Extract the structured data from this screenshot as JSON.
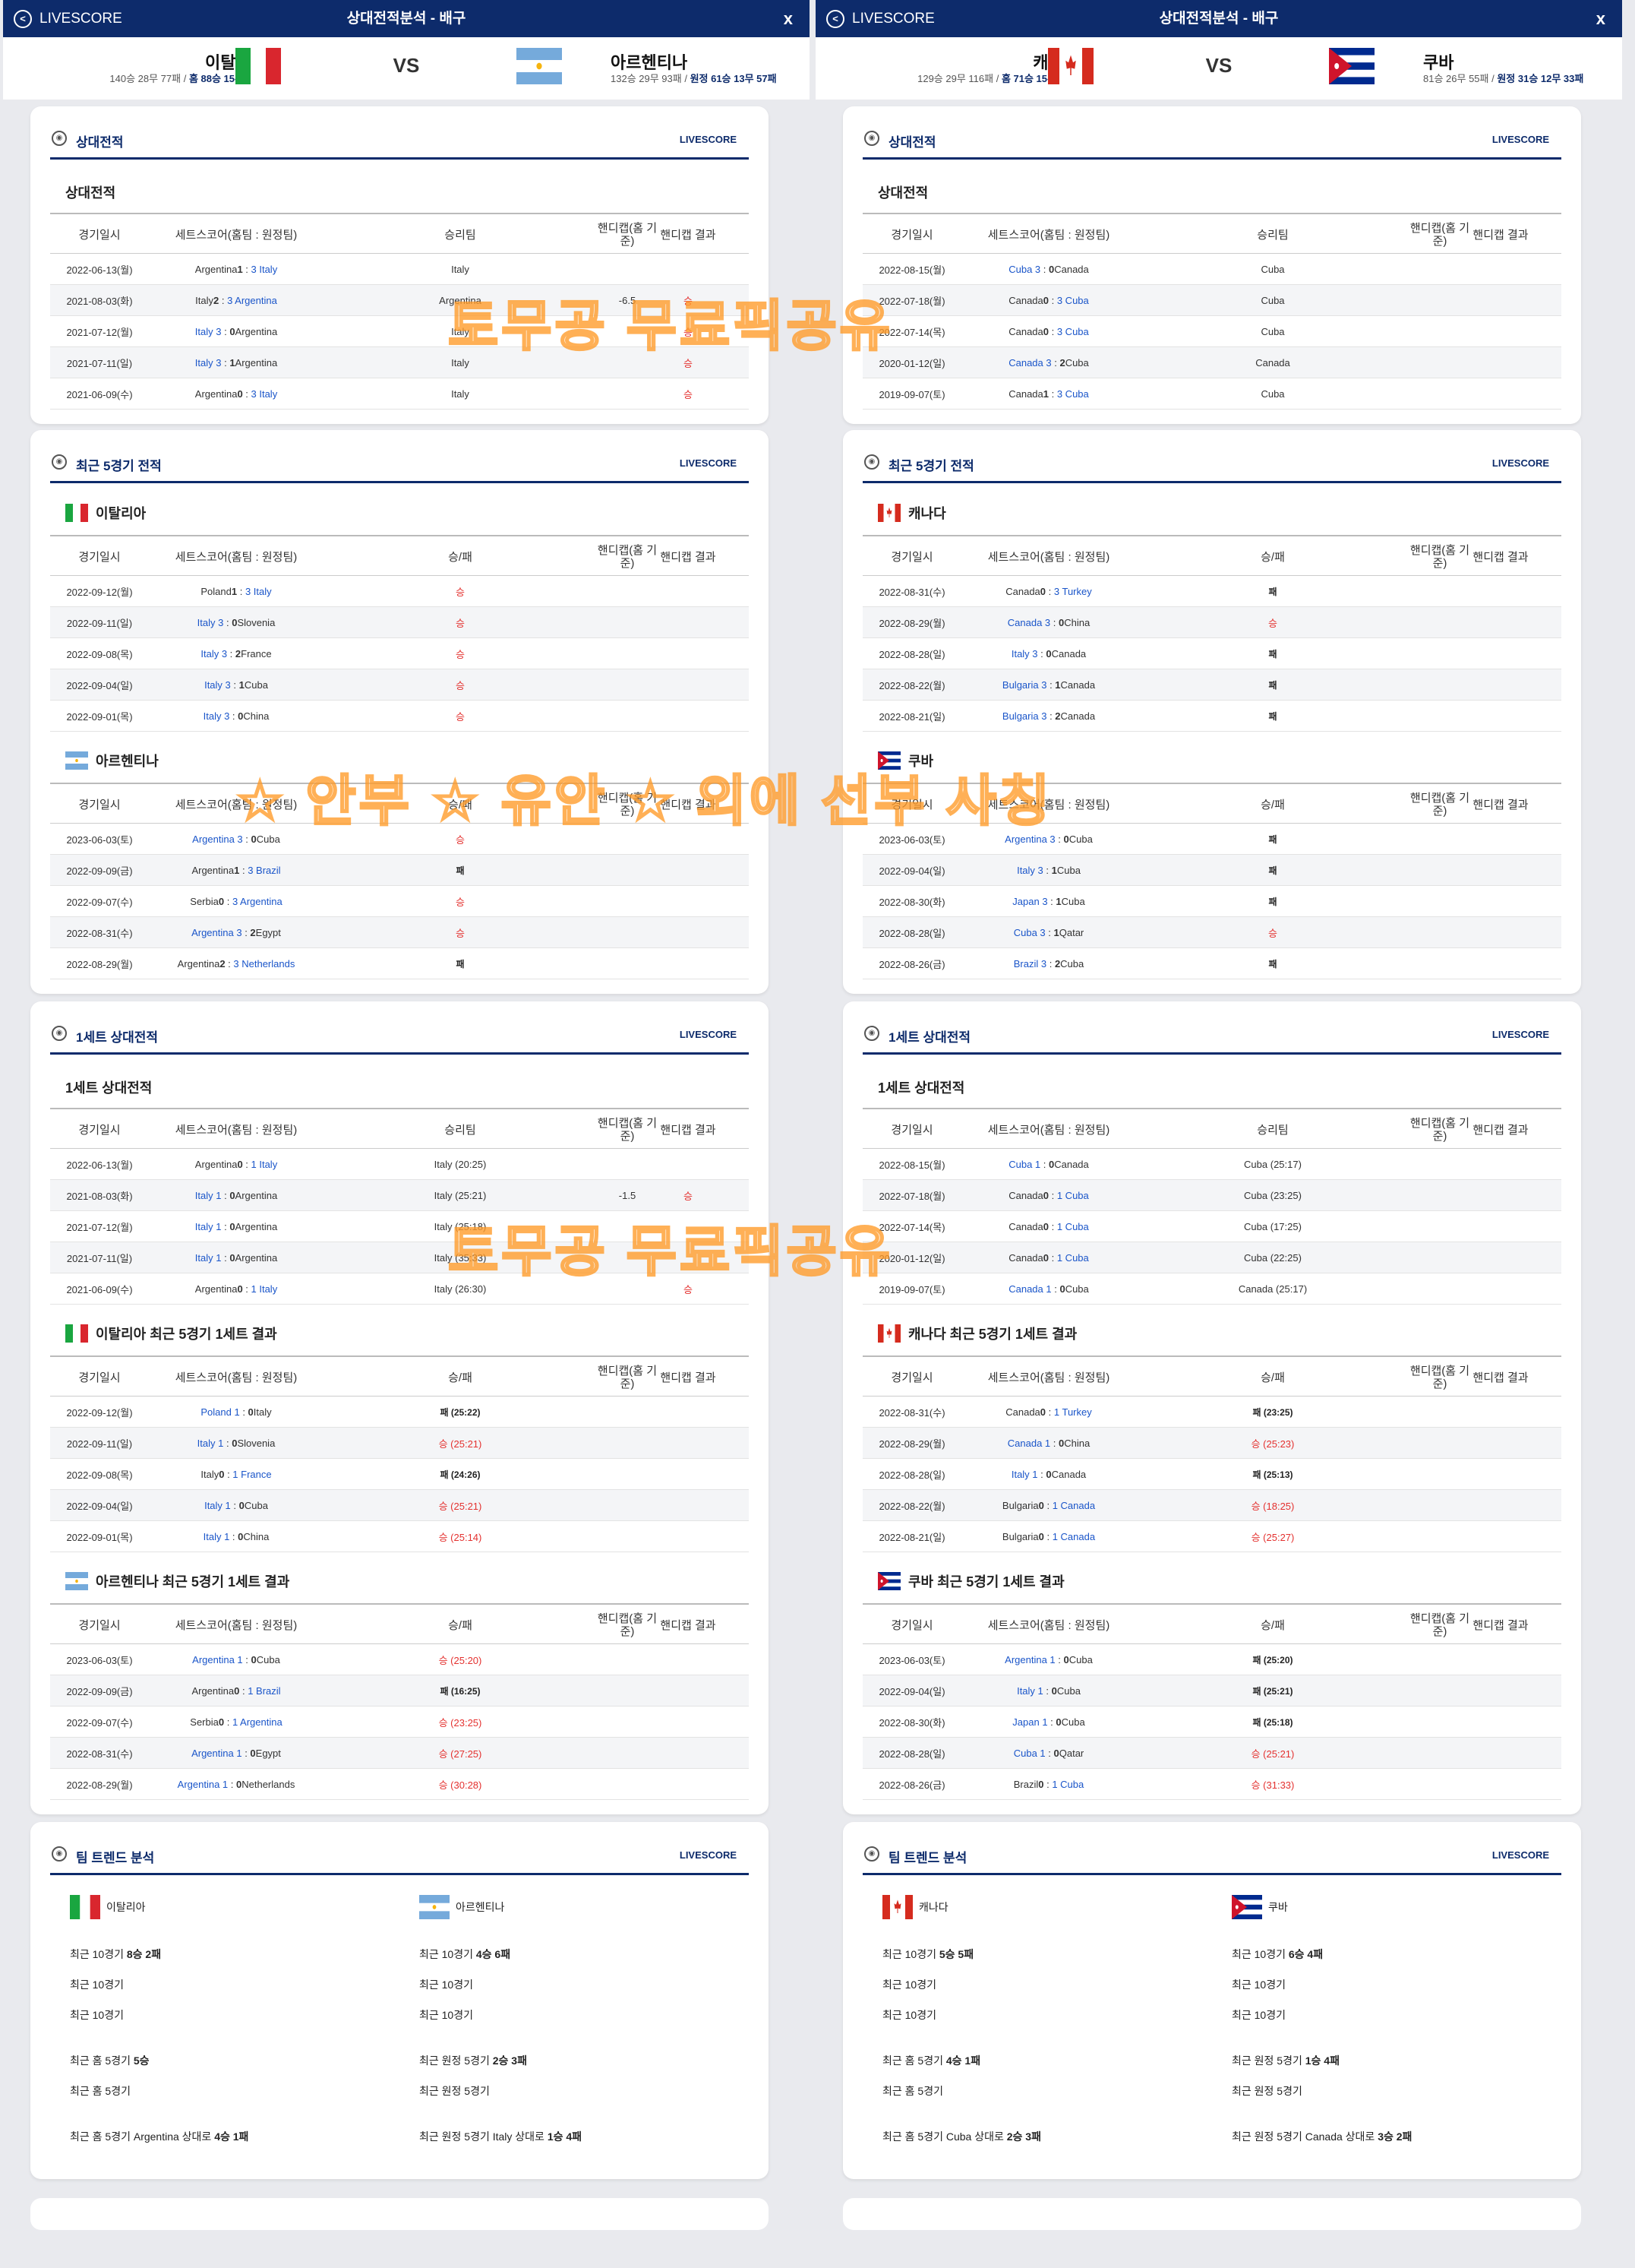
{
  "header": {
    "livescore": "LIVESCORE",
    "title": "상대전적분석 - 배구",
    "close": "x",
    "vs": "VS"
  },
  "matches": [
    {
      "home": {
        "name": "이탈리아",
        "rec1": "140승 28무 77패 / ",
        "rec2": "홈 88승 15무 40패",
        "flag": "italy"
      },
      "away": {
        "name": "아르헨티나",
        "rec1": "132승 29무 93패 / ",
        "rec2": "원정 61승 13무 57패",
        "flag": "argentina"
      },
      "h2h": {
        "title": "상대전적",
        "sub": "상대전적",
        "rows": [
          [
            "2022-06-13(월)",
            "Argentina 1 : 3 Italy",
            "Italy",
            "",
            ""
          ],
          [
            "2021-08-03(화)",
            "Italy 2 : 3 Argentina",
            "Argentina",
            "-6.5",
            "승"
          ],
          [
            "2021-07-12(월)",
            "Italy 3 : 0 Argentina",
            "Italy",
            "",
            "승"
          ],
          [
            "2021-07-11(일)",
            "Italy 3 : 1 Argentina",
            "Italy",
            "",
            "승"
          ],
          [
            "2021-06-09(수)",
            "Argentina 0 : 3 Italy",
            "Italy",
            "",
            "승"
          ]
        ]
      },
      "recent": {
        "title": "최근 5경기 전적",
        "home": {
          "name": "이탈리아",
          "rows": [
            [
              "2022-09-12(월)",
              "Poland 1 : 3 Italy",
              "승"
            ],
            [
              "2022-09-11(일)",
              "Italy 3 : 0 Slovenia",
              "승"
            ],
            [
              "2022-09-08(목)",
              "Italy 3 : 2 France",
              "승"
            ],
            [
              "2022-09-04(일)",
              "Italy 3 : 1 Cuba",
              "승"
            ],
            [
              "2022-09-01(목)",
              "Italy 3 : 0 China",
              "승"
            ]
          ]
        },
        "away": {
          "name": "아르헨티나",
          "rows": [
            [
              "2023-06-03(토)",
              "Argentina 3 : 0 Cuba",
              "승"
            ],
            [
              "2022-09-09(금)",
              "Argentina 1 : 3 Brazil",
              "패"
            ],
            [
              "2022-09-07(수)",
              "Serbia 0 : 3 Argentina",
              "승"
            ],
            [
              "2022-08-31(수)",
              "Argentina 3 : 2 Egypt",
              "승"
            ],
            [
              "2022-08-29(월)",
              "Argentina 2 : 3 Netherlands",
              "패"
            ]
          ]
        }
      },
      "set1": {
        "title": "1세트 상대전적",
        "sub": "1세트 상대전적",
        "rows": [
          [
            "2022-06-13(월)",
            "Argentina 0 : 1 Italy",
            "Italy (20:25)",
            "",
            ""
          ],
          [
            "2021-08-03(화)",
            "Italy 1 : 0 Argentina",
            "Italy (25:21)",
            "-1.5",
            "승"
          ],
          [
            "2021-07-12(월)",
            "Italy 1 : 0 Argentina",
            "Italy (25:18)",
            "",
            ""
          ],
          [
            "2021-07-11(일)",
            "Italy 1 : 0 Argentina",
            "Italy (35:33)",
            "",
            ""
          ],
          [
            "2021-06-09(수)",
            "Argentina 0 : 1 Italy",
            "Italy (26:30)",
            "",
            "승"
          ]
        ],
        "home_title": "이탈리아 최근 5경기 1세트 결과",
        "home_rows": [
          [
            "2022-09-12(월)",
            "Poland 1 : 0 Italy",
            "패 (25:22)"
          ],
          [
            "2022-09-11(일)",
            "Italy 1 : 0 Slovenia",
            "승 (25:21)"
          ],
          [
            "2022-09-08(목)",
            "Italy 0 : 1 France",
            "패 (24:26)"
          ],
          [
            "2022-09-04(일)",
            "Italy 1 : 0 Cuba",
            "승 (25:21)"
          ],
          [
            "2022-09-01(목)",
            "Italy 1 : 0 China",
            "승 (25:14)"
          ]
        ],
        "away_title": "아르헨티나 최근 5경기 1세트 결과",
        "away_rows": [
          [
            "2023-06-03(토)",
            "Argentina 1 : 0 Cuba",
            "승 (25:20)"
          ],
          [
            "2022-09-09(금)",
            "Argentina 0 : 1 Brazil",
            "패 (16:25)"
          ],
          [
            "2022-09-07(수)",
            "Serbia 0 : 1 Argentina",
            "승 (23:25)"
          ],
          [
            "2022-08-31(수)",
            "Argentina 1 : 0 Egypt",
            "승 (27:25)"
          ],
          [
            "2022-08-29(월)",
            "Argentina 1 : 0 Netherlands",
            "승 (30:28)"
          ]
        ]
      },
      "trend": {
        "title": "팀 트렌드 분석",
        "home": [
          "최근 10경기 8승 2패",
          "최근 10경기",
          "최근 10경기",
          "최근 홈 5경기 5승",
          "최근 홈 5경기",
          "최근 홈 5경기 Argentina 상대로 4승 1패"
        ],
        "away": [
          "최근 10경기 4승 6패",
          "최근 10경기",
          "최근 10경기",
          "최근 원정 5경기 2승 3패",
          "최근 원정 5경기",
          "최근 원정 5경기 Italy 상대로 1승 4패"
        ]
      }
    },
    {
      "home": {
        "name": "캐나다",
        "rec1": "129승 29무 116패 / ",
        "rec2": "홈 71승 15무 53패",
        "flag": "canada"
      },
      "away": {
        "name": "쿠바",
        "rec1": "81승 26무 55패 / ",
        "rec2": "원정 31승 12무 33패",
        "flag": "cuba"
      },
      "h2h": {
        "title": "상대전적",
        "sub": "상대전적",
        "rows": [
          [
            "2022-08-15(월)",
            "Cuba 3 : 0 Canada",
            "Cuba",
            "",
            ""
          ],
          [
            "2022-07-18(월)",
            "Canada 0 : 3 Cuba",
            "Cuba",
            "",
            ""
          ],
          [
            "2022-07-14(목)",
            "Canada 0 : 3 Cuba",
            "Cuba",
            "",
            ""
          ],
          [
            "2020-01-12(일)",
            "Canada 3 : 2 Cuba",
            "Canada",
            "",
            ""
          ],
          [
            "2019-09-07(토)",
            "Canada 1 : 3 Cuba",
            "Cuba",
            "",
            ""
          ]
        ]
      },
      "recent": {
        "title": "최근 5경기 전적",
        "home": {
          "name": "캐나다",
          "rows": [
            [
              "2022-08-31(수)",
              "Canada 0 : 3 Turkey",
              "패"
            ],
            [
              "2022-08-29(월)",
              "Canada 3 : 0 China",
              "승"
            ],
            [
              "2022-08-28(일)",
              "Italy 3 : 0 Canada",
              "패"
            ],
            [
              "2022-08-22(월)",
              "Bulgaria 3 : 1 Canada",
              "패"
            ],
            [
              "2022-08-21(일)",
              "Bulgaria 3 : 2 Canada",
              "패"
            ]
          ]
        },
        "away": {
          "name": "쿠바",
          "rows": [
            [
              "2023-06-03(토)",
              "Argentina 3 : 0 Cuba",
              "패"
            ],
            [
              "2022-09-04(일)",
              "Italy 3 : 1 Cuba",
              "패"
            ],
            [
              "2022-08-30(화)",
              "Japan 3 : 1 Cuba",
              "패"
            ],
            [
              "2022-08-28(일)",
              "Cuba 3 : 1 Qatar",
              "승"
            ],
            [
              "2022-08-26(금)",
              "Brazil 3 : 2 Cuba",
              "패"
            ]
          ]
        }
      },
      "set1": {
        "title": "1세트 상대전적",
        "sub": "1세트 상대전적",
        "rows": [
          [
            "2022-08-15(월)",
            "Cuba 1 : 0 Canada",
            "Cuba (25:17)",
            "",
            ""
          ],
          [
            "2022-07-18(월)",
            "Canada 0 : 1 Cuba",
            "Cuba (23:25)",
            "",
            ""
          ],
          [
            "2022-07-14(목)",
            "Canada 0 : 1 Cuba",
            "Cuba (17:25)",
            "",
            ""
          ],
          [
            "2020-01-12(일)",
            "Canada 0 : 1 Cuba",
            "Cuba (22:25)",
            "",
            ""
          ],
          [
            "2019-09-07(토)",
            "Canada 1 : 0 Cuba",
            "Canada (25:17)",
            "",
            ""
          ]
        ],
        "home_title": "캐나다 최근 5경기 1세트 결과",
        "home_rows": [
          [
            "2022-08-31(수)",
            "Canada 0 : 1 Turkey",
            "패 (23:25)"
          ],
          [
            "2022-08-29(월)",
            "Canada 1 : 0 China",
            "승 (25:23)"
          ],
          [
            "2022-08-28(일)",
            "Italy 1 : 0 Canada",
            "패 (25:13)"
          ],
          [
            "2022-08-22(월)",
            "Bulgaria 0 : 1 Canada",
            "승 (18:25)"
          ],
          [
            "2022-08-21(일)",
            "Bulgaria 0 : 1 Canada",
            "승 (25:27)"
          ]
        ],
        "away_title": "쿠바 최근 5경기 1세트 결과",
        "away_rows": [
          [
            "2023-06-03(토)",
            "Argentina 1 : 0 Cuba",
            "패 (25:20)"
          ],
          [
            "2022-09-04(일)",
            "Italy 1 : 0 Cuba",
            "패 (25:21)"
          ],
          [
            "2022-08-30(화)",
            "Japan 1 : 0 Cuba",
            "패 (25:18)"
          ],
          [
            "2022-08-28(일)",
            "Cuba 1 : 0 Qatar",
            "승 (25:21)"
          ],
          [
            "2022-08-26(금)",
            "Brazil 0 : 1 Cuba",
            "승 (31:33)"
          ]
        ]
      },
      "trend": {
        "title": "팀 트렌드 분석",
        "home": [
          "최근 10경기 5승 5패",
          "최근 10경기",
          "최근 10경기",
          "최근 홈 5경기 4승 1패",
          "최근 홈 5경기",
          "최근 홈 5경기 Cuba 상대로 2승 3패"
        ],
        "away": [
          "최근 10경기 6승 4패",
          "최근 10경기",
          "최근 10경기",
          "최근 원정 5경기 1승 4패",
          "최근 원정 5경기",
          "최근 원정 5경기 Canada 상대로 3승 2패"
        ]
      }
    }
  ],
  "columns": {
    "date": "경기일시",
    "score": "세트스코어(홈팀 : 원정팀)",
    "winner": "승리팀",
    "result": "승/패",
    "hcap": "핸디캡(홈 기준)",
    "hres": "핸디캡 결과"
  },
  "watermarks": [
    "토무공 무료픽공유",
    "☆ 안부 ☆ 유안 ☆ 외에 선부 사칭",
    "토무공 무료픽공유"
  ],
  "colors": {
    "navy": "#0d2b6b",
    "win": "#e4312f",
    "link": "#1a55c9"
  }
}
